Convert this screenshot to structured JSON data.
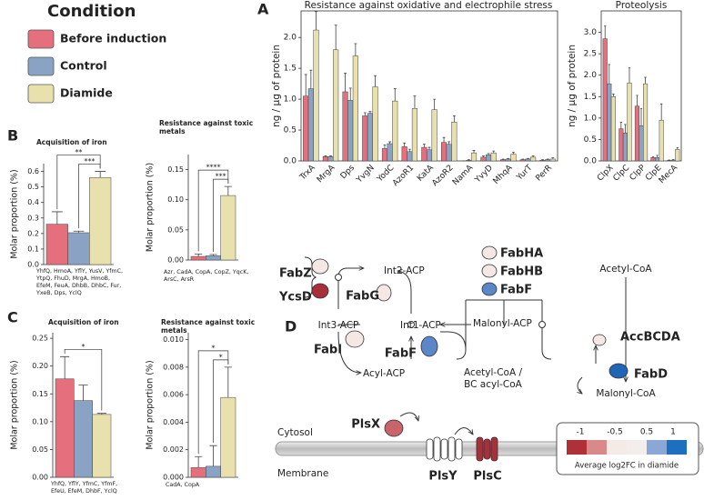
{
  "panel_labels": [
    "A",
    "B",
    "C",
    "D"
  ],
  "legend": {
    "title": "Condition",
    "items": [
      {
        "name": "Before induction",
        "color": "#e56f7d"
      },
      {
        "name": "Control",
        "color": "#8aa2c4"
      },
      {
        "name": "Diamide",
        "color": "#e8e1ad"
      }
    ]
  },
  "chart_data": [
    {
      "type": "bar",
      "title": "Resistance against oxidative and electrophile stress",
      "ylabel": "ng / µg of protein",
      "categories": [
        "TrxA",
        "MrgA",
        "Dps",
        "YvgN",
        "YodC",
        "AzoR1",
        "KatA",
        "AzoR2",
        "NamA",
        "YvyD",
        "MhqA",
        "YurT",
        "PerR"
      ],
      "series": [
        {
          "values": [
            1.05,
            0.07,
            1.12,
            0.73,
            0.2,
            0.23,
            0.22,
            0.3,
            0.0,
            0.06,
            0.02,
            0.02,
            0.01
          ],
          "errors": [
            0.35,
            0.01,
            0.3,
            0.05,
            0.06,
            0.06,
            0.05,
            0.08,
            0.0,
            0.02,
            0.01,
            0.01,
            0.01
          ]
        },
        {
          "values": [
            1.17,
            0.07,
            0.98,
            0.77,
            0.28,
            0.15,
            0.18,
            0.27,
            0.01,
            0.1,
            0.03,
            0.03,
            0.02
          ],
          "errors": [
            0.3,
            0.01,
            0.2,
            0.03,
            0.03,
            0.04,
            0.04,
            0.04,
            0.01,
            0.02,
            0.01,
            0.01,
            0.01
          ]
        },
        {
          "values": [
            2.12,
            1.8,
            1.7,
            1.2,
            0.97,
            0.85,
            0.83,
            0.63,
            0.13,
            0.13,
            0.11,
            0.06,
            0.03
          ],
          "errors": [
            0.3,
            0.4,
            0.2,
            0.18,
            0.2,
            0.2,
            0.17,
            0.1,
            0.04,
            0.03,
            0.03,
            0.02,
            0.02
          ]
        }
      ],
      "ylim": [
        0,
        2.43
      ],
      "yticks": [
        {
          "value": 0,
          "label": "0.0"
        },
        0.5,
        {
          "value": 1,
          "label": "1.0"
        },
        1.5,
        {
          "value": 2,
          "label": "2.0"
        }
      ]
    },
    {
      "type": "bar",
      "title": "Proteolysis",
      "ylabel": "ng / µg of protein",
      "categories": [
        "ClpX",
        "ClpC",
        "ClpP",
        "ClpE",
        "MecA"
      ],
      "series": [
        {
          "values": [
            2.85,
            0.75,
            1.28,
            0.08,
            0.01
          ],
          "errors": [
            0.3,
            0.15,
            0.25,
            0.02,
            0.01
          ]
        },
        {
          "values": [
            1.8,
            0.65,
            0.82,
            0.08,
            0.02
          ],
          "errors": [
            0.45,
            0.2,
            0.4,
            0.05,
            0.01
          ]
        },
        {
          "values": [
            1.5,
            1.82,
            1.8,
            0.95,
            0.27
          ],
          "errors": [
            0.06,
            0.35,
            0.15,
            0.38,
            0.04
          ]
        }
      ],
      "ylim": [
        0,
        3.5
      ],
      "yticks": [
        {
          "value": 0,
          "label": "0.0"
        },
        0.5,
        {
          "value": 1,
          "label": "1.0"
        },
        1.5,
        {
          "value": 2,
          "label": "2.0"
        },
        2.5,
        {
          "value": 3,
          "label": "3.0"
        }
      ]
    },
    {
      "type": "bar",
      "title": "Acquisition of iron",
      "ylabel": "Molar proportion (%)",
      "x_label": "YhfQ, HmoA, YflY, YusV, YfmC, YtpQ, FhuD, MrgA, HmoB, EfeM, FeuA, DhbB, DhbC, Fur, YxeB, Dps, YclQ",
      "series": [
        {
          "values": [
            0.26
          ],
          "errors": [
            0.08
          ]
        },
        {
          "values": [
            0.205
          ],
          "errors": [
            0.01
          ]
        },
        {
          "values": [
            0.56
          ],
          "errors": [
            0.04
          ]
        }
      ],
      "ylim": [
        0,
        0.65
      ],
      "yticks": [
        {
          "value": 0,
          "label": "0.0"
        },
        0.1,
        0.2,
        0.3,
        0.4,
        0.5,
        0.6
      ],
      "comparisons": [
        {
          "groups": [
            1,
            2
          ],
          "label": "***"
        },
        {
          "groups": [
            0,
            2
          ],
          "label": "**"
        }
      ]
    },
    {
      "type": "bar",
      "title": "Resistance against toxic metals",
      "ylabel": "Molar proportion (%)",
      "x_label": "Azr, CadA, CopA, CopZ, YqcK, ArsC, ArsR",
      "series": [
        {
          "values": [
            0.006
          ],
          "errors": [
            0.004
          ]
        },
        {
          "values": [
            0.007
          ],
          "errors": [
            0.002
          ]
        },
        {
          "values": [
            0.107
          ],
          "errors": [
            0.015
          ]
        }
      ],
      "ylim": [
        0,
        0.175
      ],
      "yticks": [
        {
          "value": 0,
          "label": "0.00"
        },
        0.05,
        {
          "value": 0.1,
          "label": "0.10"
        },
        0.15
      ],
      "comparisons": [
        {
          "groups": [
            1,
            2
          ],
          "label": "***"
        },
        {
          "groups": [
            0,
            2
          ],
          "label": "****"
        }
      ]
    },
    {
      "type": "bar",
      "title": "Acquisition of iron",
      "ylabel": "Molar proportion (%)",
      "x_label": "YhfQ, YflY, YfmC, YfmF, EfeU, EfeM, DhbF, YclQ",
      "series": [
        {
          "values": [
            0.177
          ],
          "errors": [
            0.04
          ]
        },
        {
          "values": [
            0.138
          ],
          "errors": [
            0.028
          ]
        },
        {
          "values": [
            0.113
          ],
          "errors": [
            0.002
          ]
        }
      ],
      "ylim": [
        0,
        0.26
      ],
      "yticks": [
        {
          "value": 0,
          "label": "0.00"
        },
        0.05,
        {
          "value": 0.1,
          "label": "0.10"
        },
        0.15,
        {
          "value": 0.2,
          "label": "0.20"
        },
        0.25
      ],
      "comparisons": [
        {
          "groups": [
            0,
            2
          ],
          "label": "*"
        }
      ]
    },
    {
      "type": "bar",
      "title": "Resistance against toxic metals",
      "ylabel": "Molar proportion (%)",
      "x_label": "CadA, CopA",
      "series": [
        {
          "values": [
            0.0007
          ],
          "errors": [
            0.0008
          ]
        },
        {
          "values": [
            0.0008
          ],
          "errors": [
            0.0015
          ]
        },
        {
          "values": [
            0.0058
          ],
          "errors": [
            0.0022
          ]
        }
      ],
      "ylim": [
        0,
        0.0105
      ],
      "yticks": [
        {
          "value": 0,
          "label": "0.000"
        },
        0.002,
        0.004,
        0.006,
        0.008,
        {
          "value": 0.01,
          "label": "0.010"
        }
      ],
      "comparisons": [
        {
          "groups": [
            1,
            2
          ],
          "label": "*"
        },
        {
          "groups": [
            0,
            2
          ],
          "label": "*"
        }
      ]
    }
  ],
  "diagram": {
    "enzymes": [
      "FabZ",
      "YcsD",
      "FabG",
      "FabHA",
      "FabHB",
      "FabF",
      "FabI",
      "FabF",
      "AccBCDA",
      "FabD",
      "PlsX",
      "PlsY",
      "PlsC"
    ],
    "metabolites": [
      "Int2-ACP",
      "Int3-ACP",
      "Int1-ACP",
      "Malonyl-ACP",
      "Acetyl-CoA",
      "Acyl-ACP",
      "Acetyl-CoA /",
      "BC acyl-CoA",
      "Malonyl-CoA"
    ],
    "compartments": [
      "Cytosol",
      "Membrane"
    ],
    "colorbar": {
      "ticks": [
        -1,
        -0.5,
        0.5,
        1
      ],
      "label": "Average log2FC in diamide"
    }
  }
}
